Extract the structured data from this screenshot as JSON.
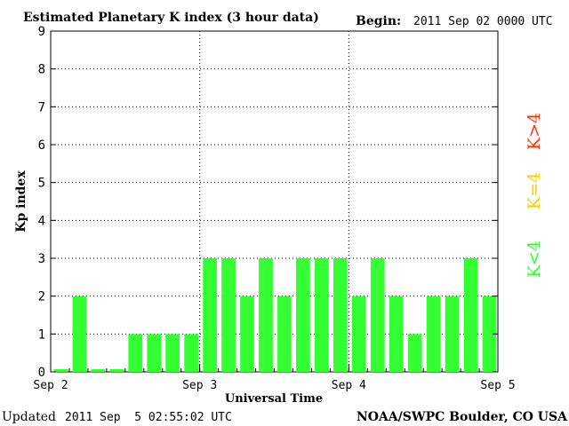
{
  "header": {
    "title": "Estimated Planetary K index (3 hour data)",
    "begin_label": "Begin:",
    "begin_value": "2011 Sep 02 0000 UTC"
  },
  "footer": {
    "updated_label": "Updated",
    "updated_value": "2011 Sep  5 02:55:02 UTC",
    "source": "NOAA/SWPC Boulder, CO USA"
  },
  "legend": [
    {
      "label": "K>4",
      "color": "#ff3300"
    },
    {
      "label": "K=4",
      "color": "#ffcc00"
    },
    {
      "label": "K<4",
      "color": "#33ff33"
    }
  ],
  "chart_data": {
    "type": "bar",
    "title": "Estimated Planetary K index (3 hour data)",
    "xlabel": "Universal Time",
    "ylabel": "Kp index",
    "ylim": [
      0,
      9
    ],
    "yticks": [
      "0",
      "1",
      "2",
      "3",
      "4",
      "5",
      "6",
      "7",
      "8",
      "9"
    ],
    "xticks": [
      "Sep 2",
      "Sep 3",
      "Sep 4",
      "Sep 5"
    ],
    "grid": true,
    "series": [
      {
        "values": [
          0,
          2,
          0,
          0,
          1,
          1,
          1,
          1,
          3,
          3,
          2,
          3,
          2,
          3,
          3,
          3,
          2,
          3,
          2,
          1,
          2,
          2,
          3,
          2
        ],
        "color": "#33ff33"
      }
    ]
  }
}
